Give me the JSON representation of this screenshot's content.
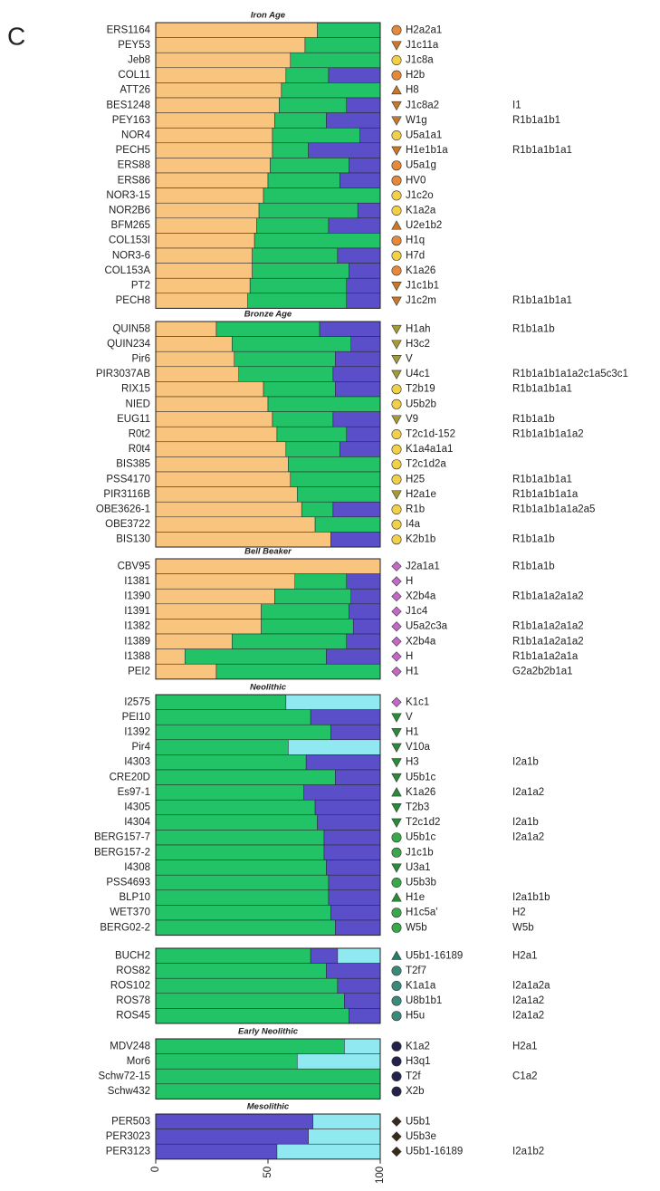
{
  "panel_label": "C",
  "chart_data": [
    {
      "type": "bar",
      "orientation": "horizontal",
      "stacked": true,
      "title": "Iron Age",
      "xlim": [
        0,
        100
      ],
      "categories": [
        "ERS1164",
        "PEY53",
        "Jeb8",
        "COL11",
        "ATT26",
        "BES1248",
        "PEY163",
        "NOR4",
        "PECH5",
        "ERS88",
        "ERS86",
        "NOR3-15",
        "NOR2B6",
        "BFM265",
        "COL153I",
        "NOR3-6",
        "COL153A",
        "PT2",
        "PECH8"
      ],
      "series": [
        {
          "color": "#f8c47e",
          "values": [
            72,
            66.5,
            60,
            58,
            56,
            55,
            53,
            52,
            52,
            51,
            50,
            48,
            46,
            45,
            44,
            43,
            43,
            42,
            41
          ]
        },
        {
          "color": "#22c266",
          "values": [
            28,
            33.5,
            40,
            19,
            44,
            30,
            23,
            39,
            16,
            35,
            32,
            52,
            44,
            32,
            56,
            38,
            43,
            43,
            44
          ]
        },
        {
          "color": "#5a4fc8",
          "values": [
            0,
            0,
            0,
            23,
            0,
            15,
            24,
            9,
            32,
            14,
            18,
            0,
            10,
            23,
            0,
            19,
            14,
            15,
            15
          ]
        }
      ],
      "markers": [
        {
          "shape": "circle",
          "color": "#e8883a"
        },
        {
          "shape": "triangle-down",
          "color": "#c8782a"
        },
        {
          "shape": "circle",
          "color": "#f2d04a"
        },
        {
          "shape": "circle",
          "color": "#e8883a"
        },
        {
          "shape": "triangle-up",
          "color": "#c8782a"
        },
        {
          "shape": "triangle-down",
          "color": "#c8782a"
        },
        {
          "shape": "triangle-down",
          "color": "#c8782a"
        },
        {
          "shape": "circle",
          "color": "#f2d04a"
        },
        {
          "shape": "triangle-down",
          "color": "#c8782a"
        },
        {
          "shape": "circle",
          "color": "#e8883a"
        },
        {
          "shape": "circle",
          "color": "#e8883a"
        },
        {
          "shape": "circle",
          "color": "#f2d04a"
        },
        {
          "shape": "circle",
          "color": "#f2d04a"
        },
        {
          "shape": "triangle-up",
          "color": "#c8782a"
        },
        {
          "shape": "circle",
          "color": "#e8883a"
        },
        {
          "shape": "circle",
          "color": "#f2d04a"
        },
        {
          "shape": "circle",
          "color": "#e8883a"
        },
        {
          "shape": "triangle-down",
          "color": "#c8782a"
        },
        {
          "shape": "triangle-down",
          "color": "#c8782a"
        }
      ],
      "mt_haplogroups": [
        "H2a2a1",
        "J1c11a",
        "J1c8a",
        "H2b",
        "H8",
        "J1c8a2",
        "W1g",
        "U5a1a1",
        "H1e1b1a",
        "U5a1g",
        "HV0",
        "J1c2o",
        "K1a2a",
        "U2e1b2",
        "H1q",
        "H7d",
        "K1a26",
        "J1c1b1",
        "J1c2m"
      ],
      "y_haplogroups": [
        null,
        null,
        null,
        null,
        null,
        "I1",
        "R1b1a1b1",
        null,
        "R1b1a1b1a1",
        null,
        null,
        null,
        null,
        null,
        null,
        null,
        null,
        null,
        "R1b1a1b1a1"
      ]
    },
    {
      "type": "bar",
      "orientation": "horizontal",
      "stacked": true,
      "title": "Bronze Age",
      "xlim": [
        0,
        100
      ],
      "categories": [
        "QUIN58",
        "QUIN234",
        "Pir6",
        "PIR3037AB",
        "RIX15",
        "NIED",
        "EUG11",
        "R0t2",
        "R0t4",
        "BIS385",
        "PSS4170",
        "PIR3116B",
        "OBE3626-1",
        "OBE3722",
        "BIS130"
      ],
      "series": [
        {
          "color": "#f8c47e",
          "values": [
            27,
            34,
            35,
            37,
            48,
            50,
            52,
            54,
            58,
            59,
            60,
            63,
            65,
            71,
            78
          ]
        },
        {
          "color": "#22c266",
          "values": [
            46,
            53,
            45,
            42,
            32,
            50,
            27,
            31,
            24,
            41,
            40,
            37,
            14,
            29,
            0
          ]
        },
        {
          "color": "#5a4fc8",
          "values": [
            27,
            13,
            20,
            21,
            20,
            0,
            21,
            15,
            18,
            0,
            0,
            0,
            21,
            0,
            22
          ]
        }
      ],
      "markers": [
        {
          "shape": "triangle-down",
          "color": "#a59a35"
        },
        {
          "shape": "triangle-down",
          "color": "#a59a35"
        },
        {
          "shape": "triangle-down",
          "color": "#a59a35"
        },
        {
          "shape": "triangle-down",
          "color": "#a59a35"
        },
        {
          "shape": "circle",
          "color": "#f2d04a"
        },
        {
          "shape": "circle",
          "color": "#f2d04a"
        },
        {
          "shape": "triangle-down",
          "color": "#a59a35"
        },
        {
          "shape": "circle",
          "color": "#f2d04a"
        },
        {
          "shape": "circle",
          "color": "#f2d04a"
        },
        {
          "shape": "circle",
          "color": "#f2d04a"
        },
        {
          "shape": "circle",
          "color": "#f2d04a"
        },
        {
          "shape": "triangle-down",
          "color": "#a59a35"
        },
        {
          "shape": "circle",
          "color": "#f2d04a"
        },
        {
          "shape": "circle",
          "color": "#f2d04a"
        },
        {
          "shape": "circle",
          "color": "#f2d04a"
        }
      ],
      "mt_haplogroups": [
        "H1ah",
        "H3c2",
        "V",
        "U4c1",
        "T2b19",
        "U5b2b",
        "V9",
        "T2c1d-152",
        "K1a4a1a1",
        "T2c1d2a",
        "H25",
        "H2a1e",
        "R1b",
        "I4a",
        "K2b1b"
      ],
      "y_haplogroups": [
        "R1b1a1b",
        null,
        null,
        "R1b1a1b1a1a2c1a5c3c1",
        "R1b1a1b1a1",
        null,
        "R1b1a1b",
        "R1b1a1b1a1a2",
        null,
        null,
        "R1b1a1b1a1",
        "R1b1a1b1a1a",
        "R1b1a1b1a1a2a5",
        null,
        "R1b1a1b"
      ]
    },
    {
      "type": "bar",
      "orientation": "horizontal",
      "stacked": true,
      "title": "Bell Beaker",
      "xlim": [
        0,
        100
      ],
      "categories": [
        "CBV95",
        "I1381",
        "I1390",
        "I1391",
        "I1382",
        "I1389",
        "I1388",
        "PEI2"
      ],
      "series": [
        {
          "color": "#f8c47e",
          "values": [
            100,
            62,
            53,
            47,
            47,
            34,
            13,
            27
          ]
        },
        {
          "color": "#22c266",
          "values": [
            0,
            23,
            34,
            39,
            41,
            51,
            63,
            73
          ]
        },
        {
          "color": "#5a4fc8",
          "values": [
            0,
            15,
            13,
            14,
            12,
            15,
            24,
            0
          ]
        }
      ],
      "markers": [
        {
          "shape": "diamond",
          "color": "#c468c8"
        },
        {
          "shape": "diamond",
          "color": "#c468c8"
        },
        {
          "shape": "diamond",
          "color": "#c468c8"
        },
        {
          "shape": "diamond",
          "color": "#c468c8"
        },
        {
          "shape": "diamond",
          "color": "#c468c8"
        },
        {
          "shape": "diamond",
          "color": "#c468c8"
        },
        {
          "shape": "diamond",
          "color": "#c468c8"
        },
        {
          "shape": "diamond",
          "color": "#c468c8"
        }
      ],
      "mt_haplogroups": [
        "J2a1a1",
        "H",
        "X2b4a",
        "J1c4",
        "U5a2c3a",
        "X2b4a",
        "H",
        "H1"
      ],
      "y_haplogroups": [
        "R1b1a1b",
        null,
        "R1b1a1a2a1a2",
        null,
        "R1b1a1a2a1a2",
        "R1b1a1a2a1a2",
        "R1b1a1a2a1a",
        "G2a2b2b1a1"
      ]
    },
    {
      "type": "bar",
      "orientation": "horizontal",
      "stacked": true,
      "title": "Neolithic",
      "xlim": [
        0,
        100
      ],
      "categories": [
        "I2575",
        "PEI10",
        "I1392",
        "Pir4",
        "I4303",
        "CRE20D",
        "Es97-1",
        "I4305",
        "I4304",
        "BERG157-7",
        "BERG157-2",
        "I4308",
        "PSS4693",
        "BLP10",
        "WET370",
        "BERG02-2"
      ],
      "series": [
        {
          "color": "#22c266",
          "values": [
            58,
            69,
            78,
            59,
            67,
            80,
            66,
            71,
            72,
            75,
            75,
            76,
            77,
            77,
            78,
            80
          ]
        },
        {
          "color": "#5a4fc8",
          "values": [
            0,
            31,
            22,
            0,
            33,
            20,
            34,
            29,
            28,
            25,
            25,
            24,
            23,
            23,
            22,
            20
          ]
        },
        {
          "color": "#90e8f0",
          "values": [
            42,
            0,
            0,
            41,
            0,
            0,
            0,
            0,
            0,
            0,
            0,
            0,
            0,
            0,
            0,
            0
          ]
        }
      ],
      "markers": [
        {
          "shape": "diamond",
          "color": "#c468c8"
        },
        {
          "shape": "triangle-down",
          "color": "#2a8a3a"
        },
        {
          "shape": "triangle-down",
          "color": "#2a8a3a"
        },
        {
          "shape": "triangle-down",
          "color": "#2a8a3a"
        },
        {
          "shape": "triangle-down",
          "color": "#2a8a3a"
        },
        {
          "shape": "triangle-down",
          "color": "#2a8a3a"
        },
        {
          "shape": "triangle-up",
          "color": "#2a8a3a"
        },
        {
          "shape": "triangle-down",
          "color": "#2a8a3a"
        },
        {
          "shape": "triangle-down",
          "color": "#2a8a3a"
        },
        {
          "shape": "circle",
          "color": "#3aa84a"
        },
        {
          "shape": "circle",
          "color": "#3aa84a"
        },
        {
          "shape": "triangle-down",
          "color": "#2a8a3a"
        },
        {
          "shape": "circle",
          "color": "#3aa84a"
        },
        {
          "shape": "triangle-up",
          "color": "#2a8a3a"
        },
        {
          "shape": "circle",
          "color": "#3aa84a"
        },
        {
          "shape": "circle",
          "color": "#3aa84a"
        }
      ],
      "mt_haplogroups": [
        "K1c1",
        "V",
        "H1",
        "V10a",
        "H3",
        "U5b1c",
        "K1a26",
        "T2b3",
        "T2c1d2",
        "U5b1c",
        "J1c1b",
        "U3a1",
        "U5b3b",
        "H1e",
        "H1c5a'",
        "W5b"
      ],
      "y_haplogroups": [
        null,
        null,
        null,
        null,
        "I2a1b",
        null,
        "I2a1a2",
        null,
        "I2a1b",
        "I2a1a2",
        null,
        null,
        null,
        "I2a1b1b",
        "H2",
        "W5b"
      ]
    },
    {
      "type": "bar",
      "orientation": "horizontal",
      "stacked": true,
      "xlim": [
        0,
        100
      ],
      "categories": [
        "BUCH2",
        "ROS82",
        "ROS102",
        "ROS78",
        "ROS45"
      ],
      "series": [
        {
          "color": "#22c266",
          "values": [
            69,
            76,
            81,
            84,
            86
          ]
        },
        {
          "color": "#5a4fc8",
          "values": [
            12,
            24,
            19,
            16,
            14
          ]
        },
        {
          "color": "#90e8f0",
          "values": [
            19,
            0,
            0,
            0,
            0
          ]
        }
      ],
      "markers": [
        {
          "shape": "triangle-up",
          "color": "#2a7a6a"
        },
        {
          "shape": "circle",
          "color": "#3a8a7a"
        },
        {
          "shape": "circle",
          "color": "#3a8a7a"
        },
        {
          "shape": "circle",
          "color": "#3a8a7a"
        },
        {
          "shape": "circle",
          "color": "#3a8a7a"
        }
      ],
      "mt_haplogroups": [
        "U5b1-16189",
        "T2f7",
        "K1a1a",
        "U8b1b1",
        "H5u"
      ],
      "y_haplogroups": [
        "H2a1",
        null,
        "I2a1a2a",
        "I2a1a2",
        "I2a1a2"
      ]
    },
    {
      "type": "bar",
      "orientation": "horizontal",
      "stacked": true,
      "title": "Early Neolithic",
      "xlim": [
        0,
        100
      ],
      "categories": [
        "MDV248",
        "Mor6",
        "Schw72-15",
        "Schw432"
      ],
      "series": [
        {
          "color": "#22c266",
          "values": [
            84,
            63,
            100,
            100
          ]
        },
        {
          "color": "#90e8f0",
          "values": [
            16,
            37,
            0,
            0
          ]
        }
      ],
      "markers": [
        {
          "shape": "circle",
          "color": "#22224a"
        },
        {
          "shape": "circle",
          "color": "#22224a"
        },
        {
          "shape": "circle",
          "color": "#22224a"
        },
        {
          "shape": "circle",
          "color": "#22224a"
        }
      ],
      "mt_haplogroups": [
        "K1a2",
        "H3q1",
        "T2f",
        "X2b"
      ],
      "y_haplogroups": [
        "H2a1",
        null,
        "C1a2",
        null
      ]
    },
    {
      "type": "bar",
      "orientation": "horizontal",
      "stacked": true,
      "title": "Mesolithic",
      "xlim": [
        0,
        100
      ],
      "xticks": [
        0,
        50,
        100
      ],
      "categories": [
        "PER503",
        "PER3023",
        "PER3123"
      ],
      "series": [
        {
          "color": "#5a4fc8",
          "values": [
            70,
            68,
            54
          ]
        },
        {
          "color": "#90e8f0",
          "values": [
            30,
            32,
            46
          ]
        }
      ],
      "markers": [
        {
          "shape": "diamond",
          "color": "#3a2a1a"
        },
        {
          "shape": "diamond",
          "color": "#3a2a1a"
        },
        {
          "shape": "diamond",
          "color": "#3a2a1a"
        }
      ],
      "mt_haplogroups": [
        "U5b1",
        "U5b3e",
        "U5b1-16189"
      ],
      "y_haplogroups": [
        null,
        null,
        "I2a1b2"
      ]
    }
  ]
}
